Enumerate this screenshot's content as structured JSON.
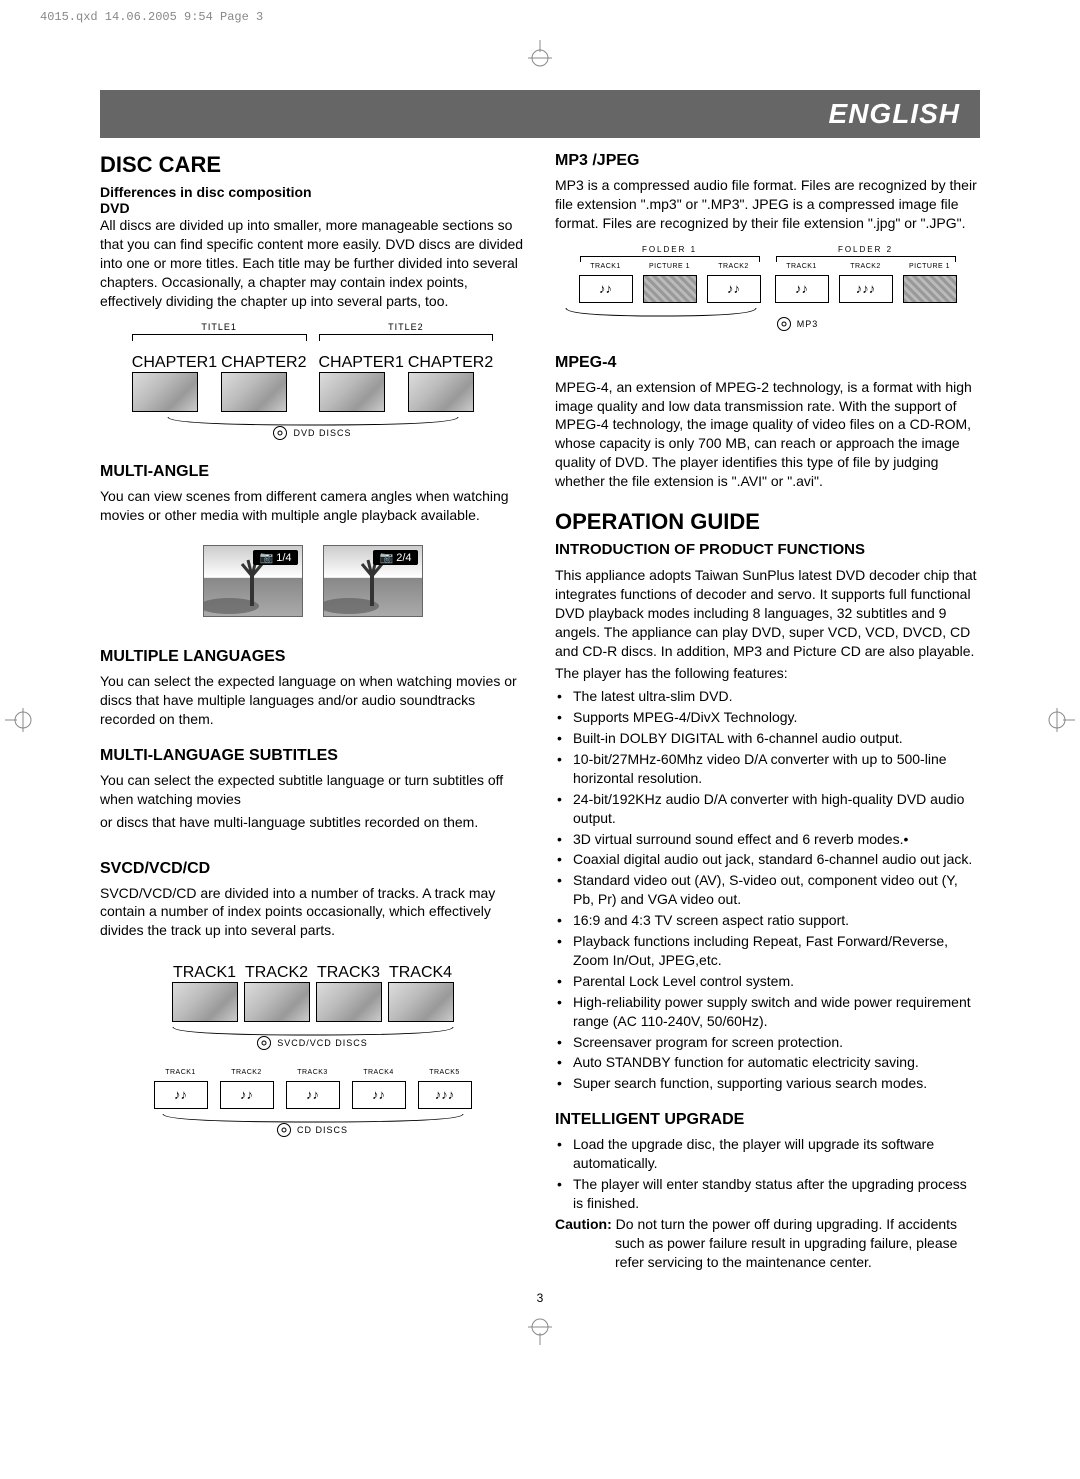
{
  "print_header": "4015.qxd  14.06.2005  9:54  Page 3",
  "banner": "ENGLISH",
  "page_number": "3",
  "left": {
    "disc_care": {
      "title": "DISC CARE",
      "subtitle": "Differences in disc composition",
      "dvd_label": "DVD",
      "dvd_body": "All discs are divided up into smaller, more manageable sections so that you can find specific content more easily. DVD discs are divided into one or more titles. Each title may be further divided into several chapters. Occasionally, a chapter may contain index points, effectively dividing the chapter up into several parts, too.",
      "dvd_diagram": {
        "titles": [
          {
            "label": "TITLE1",
            "chapters": [
              "CHAPTER1",
              "CHAPTER2"
            ]
          },
          {
            "label": "TITLE2",
            "chapters": [
              "CHAPTER1",
              "CHAPTER2"
            ]
          }
        ],
        "disc_label": "DVD DISCS"
      }
    },
    "multi_angle": {
      "title": "MULTI-ANGLE",
      "body": "You can view scenes from different camera angles when watching movies or other media with multiple angle playback available.",
      "badges": [
        "📷 1/4",
        "📷 2/4"
      ]
    },
    "multiple_languages": {
      "title": "MULTIPLE LANGUAGES",
      "body": "You can select the expected language on when watching movies or discs that have multiple languages and/or audio soundtracks recorded on them."
    },
    "multi_lang_subtitles": {
      "title": "MULTI-LANGUAGE SUBTITLES",
      "body1": "You can select the expected subtitle language or turn subtitles off when watching movies",
      "body2": "or discs that have multi-language subtitles recorded on them."
    },
    "svcd": {
      "title": "SVCD/VCD/CD",
      "body": "SVCD/VCD/CD are divided into a number of tracks. A track may contain a number of index points occasionally, which effectively divides the track up into several parts.",
      "vcd_tracks": [
        "TRACK1",
        "TRACK2",
        "TRACK3",
        "TRACK4"
      ],
      "vcd_label": "SVCD/VCD DISCS",
      "cd_tracks": [
        "TRACK1",
        "TRACK2",
        "TRACK3",
        "TRACK4",
        "TRACK5"
      ],
      "cd_notes": [
        "♪♪",
        "♪♪",
        "♪♪",
        "♪♪",
        "♪♪♪"
      ],
      "cd_label": "CD DISCS"
    }
  },
  "right": {
    "mp3": {
      "title": "MP3 /JPEG",
      "body": "MP3 is a compressed audio file format. Files are recognized by their file extension \".mp3\" or \".MP3\". JPEG is a compressed image file format. Files are recognized by their file extension \".jpg\" or \".JPG\".",
      "folders": [
        {
          "label": "FOLDER 1",
          "items": [
            {
              "t": "TRACK1",
              "k": "note"
            },
            {
              "t": "PICTURE 1",
              "k": "pic"
            },
            {
              "t": "TRACK2",
              "k": "note"
            }
          ]
        },
        {
          "label": "FOLDER 2",
          "items": [
            {
              "t": "TRACK1",
              "k": "note"
            },
            {
              "t": "TRACK2",
              "k": "note3"
            },
            {
              "t": "PICTURE 1",
              "k": "pic"
            }
          ]
        }
      ],
      "disc_label": "MP3"
    },
    "mpeg4": {
      "title": "MPEG-4",
      "body": "MPEG-4, an extension of MPEG-2 technology, is a format with high image quality and low data transmission rate. With the support of MPEG-4 technology, the image quality of video files on a CD-ROM, whose capacity is only 700 MB, can reach or approach the image quality of DVD. The player identifies this type of file by judging whether the file extension is \".AVI\" or \".avi\"."
    },
    "operation_guide": {
      "title": "OPERATION GUIDE",
      "intro_title": "INTRODUCTION OF PRODUCT FUNCTIONS",
      "body1": "This appliance adopts Taiwan SunPlus latest DVD decoder chip that integrates functions of decoder and servo. It supports full functional DVD playback modes including 8 languages, 32 subtitles and 9 angels. The appliance can play DVD, super VCD, VCD, DVCD, CD and CD-R discs. In addition, MP3 and Picture CD are also playable.",
      "body2": "The player has the following features:",
      "features": [
        "The latest ultra-slim DVD.",
        "Supports MPEG-4/DivX Technology.",
        "Built-in DOLBY DIGITAL with 6-channel audio output.",
        "10-bit/27MHz-60Mhz video D/A converter with up to 500-line horizontal resolution.",
        "24-bit/192KHz audio D/A converter with high-quality DVD audio output.",
        "3D virtual surround sound effect and 6 reverb modes.•",
        "Coaxial digital audio out jack, standard 6-channel audio out jack.",
        "Standard video out (AV), S-video out, component video out (Y, Pb, Pr) and VGA video out.",
        "16:9 and 4:3 TV screen aspect ratio support.",
        "Playback functions including Repeat, Fast Forward/Reverse, Zoom In/Out, JPEG,etc.",
        "Parental Lock Level control system.",
        "High-reliability power supply switch and wide power requirement range (AC 110-240V, 50/60Hz).",
        "Screensaver program for screen protection.",
        "Auto STANDBY function for automatic electricity saving.",
        "Super search function, supporting various search modes."
      ]
    },
    "intelligent_upgrade": {
      "title": "INTELLIGENT UPGRADE",
      "items": [
        "Load the upgrade disc, the player will upgrade its software automatically.",
        "The player will enter standby status after the upgrading process is finished."
      ],
      "caution_label": "Caution:",
      "caution_body": " Do not turn the power off during upgrading. If accidents such as power failure result in upgrading failure, please refer servicing to the maintenance center."
    }
  }
}
